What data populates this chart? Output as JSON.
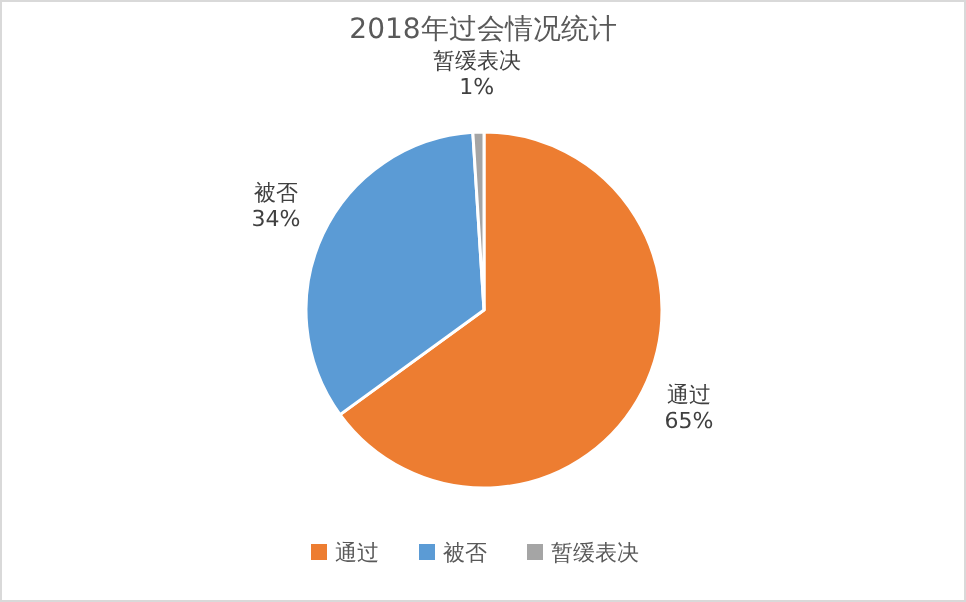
{
  "chart_data": {
    "type": "pie",
    "title": "2018年过会情况统计",
    "categories": [
      "通过",
      "被否",
      "暂缓表决"
    ],
    "values": [
      65,
      34,
      1
    ],
    "colors": [
      "#ed7d31",
      "#5b9bd5",
      "#a5a5a5"
    ],
    "value_labels": [
      "65%",
      "34%",
      "1%"
    ],
    "legend": "bottom"
  }
}
